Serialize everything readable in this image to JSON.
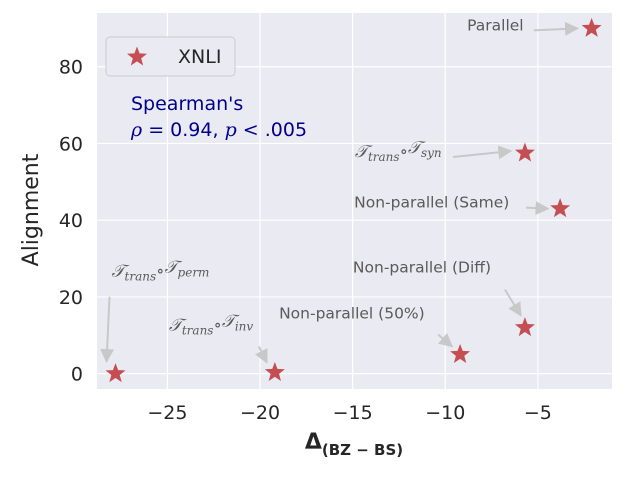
{
  "chart_data": {
    "type": "scatter",
    "xlabel": "Δ",
    "xlabel_sub": "(BZ − BS)",
    "ylabel": "Alignment",
    "xlim": [
      -28.8,
      -1.0
    ],
    "ylim": [
      -4.0,
      94.0
    ],
    "xticks": [
      -25,
      -20,
      -15,
      -10,
      -5
    ],
    "xtick_labels": [
      "−25",
      "−20",
      "−15",
      "−10",
      "−5"
    ],
    "yticks": [
      0,
      20,
      40,
      60,
      80
    ],
    "ytick_labels": [
      "0",
      "20",
      "40",
      "60",
      "80"
    ],
    "grid": true,
    "legend": {
      "position": "top-left",
      "entries": [
        "XNLI"
      ]
    },
    "series": [
      {
        "name": "XNLI",
        "marker": "star",
        "color": "#c44e52",
        "points": [
          {
            "x": -2.1,
            "y": 90.0
          },
          {
            "x": -5.7,
            "y": 57.5
          },
          {
            "x": -3.8,
            "y": 43.0
          },
          {
            "x": -5.7,
            "y": 12.0
          },
          {
            "x": -9.2,
            "y": 5.0
          },
          {
            "x": -19.2,
            "y": 0.3
          },
          {
            "x": -27.8,
            "y": 0.0
          }
        ]
      }
    ],
    "stat_annotation": {
      "line1": "Spearman's",
      "rho": "ρ",
      "rest": " = 0.94, ",
      "p": "p",
      "rest2": " < .005"
    },
    "annotations": [
      {
        "text": "Parallel",
        "point_index": 0
      },
      {
        "math": true,
        "t1": "𝒯",
        "s1": "trans",
        "mid": "∘",
        "t2": "𝒯",
        "s2": "syn",
        "point_index": 1
      },
      {
        "text": "Non-parallel (Same)",
        "point_index": 2
      },
      {
        "text": "Non-parallel (Diff)",
        "point_index": 3
      },
      {
        "text": "Non-parallel (50%)",
        "point_index": 4
      },
      {
        "math": true,
        "t1": "𝒯",
        "s1": "trans",
        "mid": "∘",
        "t2": "𝒯",
        "s2": "inv",
        "point_index": 5
      },
      {
        "math": true,
        "t1": "𝒯",
        "s1": "trans",
        "mid": "∘",
        "t2": "𝒯",
        "s2": "perm",
        "point_index": 6
      }
    ]
  }
}
